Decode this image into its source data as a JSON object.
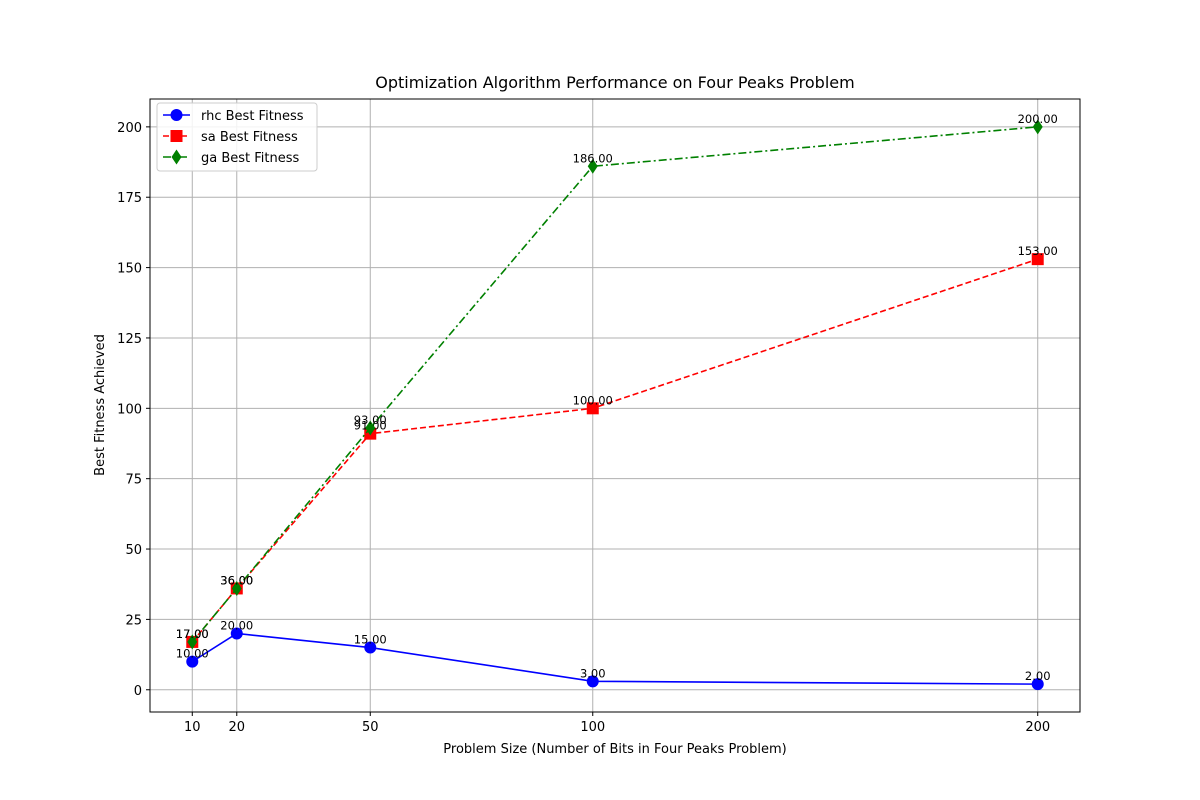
{
  "chart_data": {
    "type": "line",
    "title": "Optimization Algorithm Performance on Four Peaks Problem",
    "xlabel": "Problem Size (Number of Bits in Four Peaks Problem)",
    "ylabel": "Best Fitness Achieved",
    "x": [
      10,
      20,
      50,
      100,
      200
    ],
    "x_ticks": [
      10,
      20,
      50,
      100,
      200
    ],
    "y_ticks": [
      0,
      25,
      50,
      75,
      100,
      125,
      150,
      175,
      200
    ],
    "xlim": [
      0.5,
      209.5
    ],
    "ylim": [
      -7.9,
      209.9
    ],
    "grid": true,
    "legend_position": "upper-left",
    "series": [
      {
        "name": "rhc Best Fitness",
        "values": [
          10,
          20,
          15,
          3,
          2
        ],
        "labels": [
          "10.00",
          "20.00",
          "15.00",
          "3.00",
          "2.00"
        ],
        "color": "#0000ff",
        "marker": "circle",
        "line_style": "solid"
      },
      {
        "name": "sa Best Fitness",
        "values": [
          17,
          36,
          91,
          100,
          153
        ],
        "labels": [
          "17.00",
          "36.00",
          "91.00",
          "100.00",
          "153.00"
        ],
        "color": "#ff0000",
        "marker": "square",
        "line_style": "dashed"
      },
      {
        "name": "ga Best Fitness",
        "values": [
          17,
          36,
          93,
          186,
          200
        ],
        "labels": [
          "17.00",
          "36.00",
          "93.00",
          "186.00",
          "200.00"
        ],
        "color": "#008000",
        "marker": "diamond",
        "line_style": "dashdot"
      }
    ]
  }
}
